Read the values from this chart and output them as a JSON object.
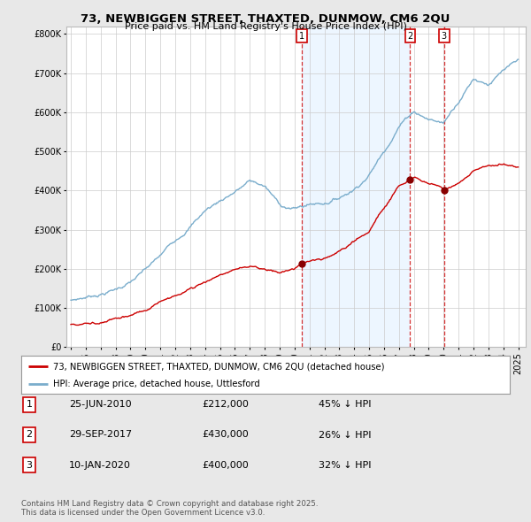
{
  "title1": "73, NEWBIGGEN STREET, THAXTED, DUNMOW, CM6 2QU",
  "title2": "Price paid vs. HM Land Registry's House Price Index (HPI)",
  "background_color": "#e8e8e8",
  "plot_bg_color": "#ffffff",
  "red_color": "#cc0000",
  "blue_color": "#7aadcc",
  "legend_label_red": "73, NEWBIGGEN STREET, THAXTED, DUNMOW, CM6 2QU (detached house)",
  "legend_label_blue": "HPI: Average price, detached house, Uttlesford",
  "transactions": [
    {
      "num": 1,
      "date": "25-JUN-2010",
      "price": "£212,000",
      "pct": "45% ↓ HPI",
      "year": 2010.48,
      "price_val": 212000
    },
    {
      "num": 2,
      "date": "29-SEP-2017",
      "price": "£430,000",
      "pct": "26% ↓ HPI",
      "year": 2017.75,
      "price_val": 430000
    },
    {
      "num": 3,
      "date": "10-JAN-2020",
      "price": "£400,000",
      "pct": "32% ↓ HPI",
      "year": 2020.03,
      "price_val": 400000
    }
  ],
  "footer1": "Contains HM Land Registry data © Crown copyright and database right 2025.",
  "footer2": "This data is licensed under the Open Government Licence v3.0.",
  "hpi_anchors_y": [
    1995,
    1996,
    1997,
    1998,
    1999,
    2000,
    2001,
    2002,
    2003,
    2004,
    2005,
    2006,
    2007,
    2008,
    2009,
    2010,
    2011,
    2012,
    2013,
    2014,
    2015,
    2016,
    2017,
    2018,
    2019,
    2020,
    2021,
    2022,
    2023,
    2024,
    2025
  ],
  "hpi_anchors_v": [
    120000,
    128000,
    138000,
    150000,
    168000,
    195000,
    225000,
    265000,
    305000,
    345000,
    370000,
    395000,
    420000,
    405000,
    355000,
    345000,
    355000,
    360000,
    375000,
    400000,
    440000,
    500000,
    570000,
    610000,
    590000,
    580000,
    640000,
    700000,
    690000,
    720000,
    735000
  ],
  "red_anchors_y": [
    1995,
    1996,
    1997,
    1998,
    1999,
    2000,
    2001,
    2002,
    2003,
    2004,
    2005,
    2006,
    2007,
    2008,
    2009,
    2010,
    2010.48,
    2011,
    2012,
    2013,
    2014,
    2015,
    2016,
    2017,
    2017.75,
    2018,
    2019,
    2020,
    2020.03,
    2021,
    2022,
    2023,
    2024,
    2025
  ],
  "red_anchors_v": [
    58000,
    62000,
    67000,
    74000,
    82000,
    95000,
    110000,
    128000,
    148000,
    170000,
    188000,
    200000,
    208000,
    200000,
    190000,
    198000,
    212000,
    220000,
    228000,
    245000,
    270000,
    300000,
    360000,
    415000,
    430000,
    435000,
    420000,
    405000,
    400000,
    420000,
    455000,
    465000,
    470000,
    460000
  ]
}
